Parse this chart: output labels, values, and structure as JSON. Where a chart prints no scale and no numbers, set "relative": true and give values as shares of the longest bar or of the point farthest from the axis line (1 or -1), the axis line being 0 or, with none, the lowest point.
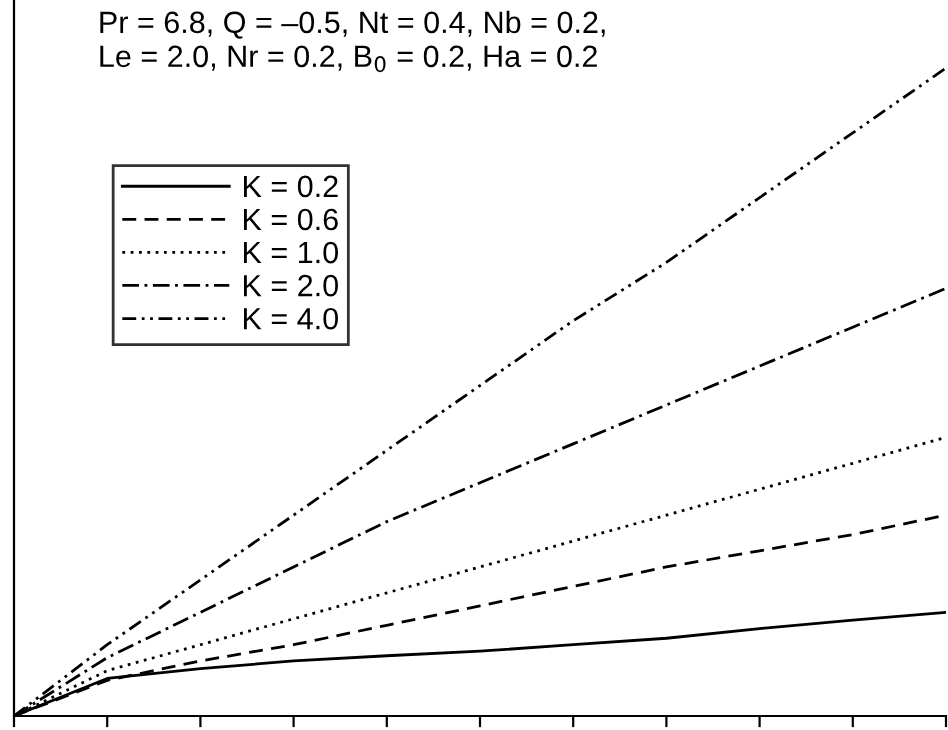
{
  "chart_data": {
    "type": "line",
    "relative": true,
    "legend": "top left",
    "grid": false,
    "marker": "none",
    "categories": [
      null,
      null,
      null,
      null,
      null,
      null,
      null,
      null,
      null,
      null,
      null
    ],
    "annotations": [
      "Pr = 6.8, Q = –0.5, Nt = 0.4, Nb = 0.2,\nLe = 2.0, Nr = 0.2, B$_{0}$ = 0.2, Ha = 0.2"
    ],
    "series": [
      {
        "name": "K = 0.2",
        "color": "#000000",
        "line_style": "solid",
        "values": [
          0,
          0.058,
          0.073,
          0.085,
          0.093,
          0.1,
          0.11,
          0.12,
          0.135,
          0.148,
          0.16
        ]
      },
      {
        "name": "K = 0.6",
        "color": "#000000",
        "line_style": "dashed",
        "values": [
          0,
          0.055,
          0.085,
          0.11,
          0.14,
          0.17,
          0.2,
          0.23,
          0.255,
          0.28,
          0.31
        ]
      },
      {
        "name": "K = 1.0",
        "color": "#000000",
        "line_style": "dotted",
        "values": [
          0,
          0.07,
          0.11,
          0.15,
          0.19,
          0.23,
          0.27,
          0.31,
          0.35,
          0.39,
          0.43
        ]
      },
      {
        "name": "K = 2.0",
        "color": "#000000",
        "line_style": "dashdot",
        "values": [
          0,
          0.09,
          0.16,
          0.23,
          0.3,
          0.36,
          0.42,
          0.48,
          0.54,
          0.6,
          0.66
        ]
      },
      {
        "name": "K = 4.0",
        "color": "#000000",
        "line_style": "dashdotdot",
        "values": [
          0,
          0.11,
          0.21,
          0.31,
          0.41,
          0.51,
          0.61,
          0.7,
          0.8,
          0.9,
          1.0
        ]
      }
    ]
  }
}
